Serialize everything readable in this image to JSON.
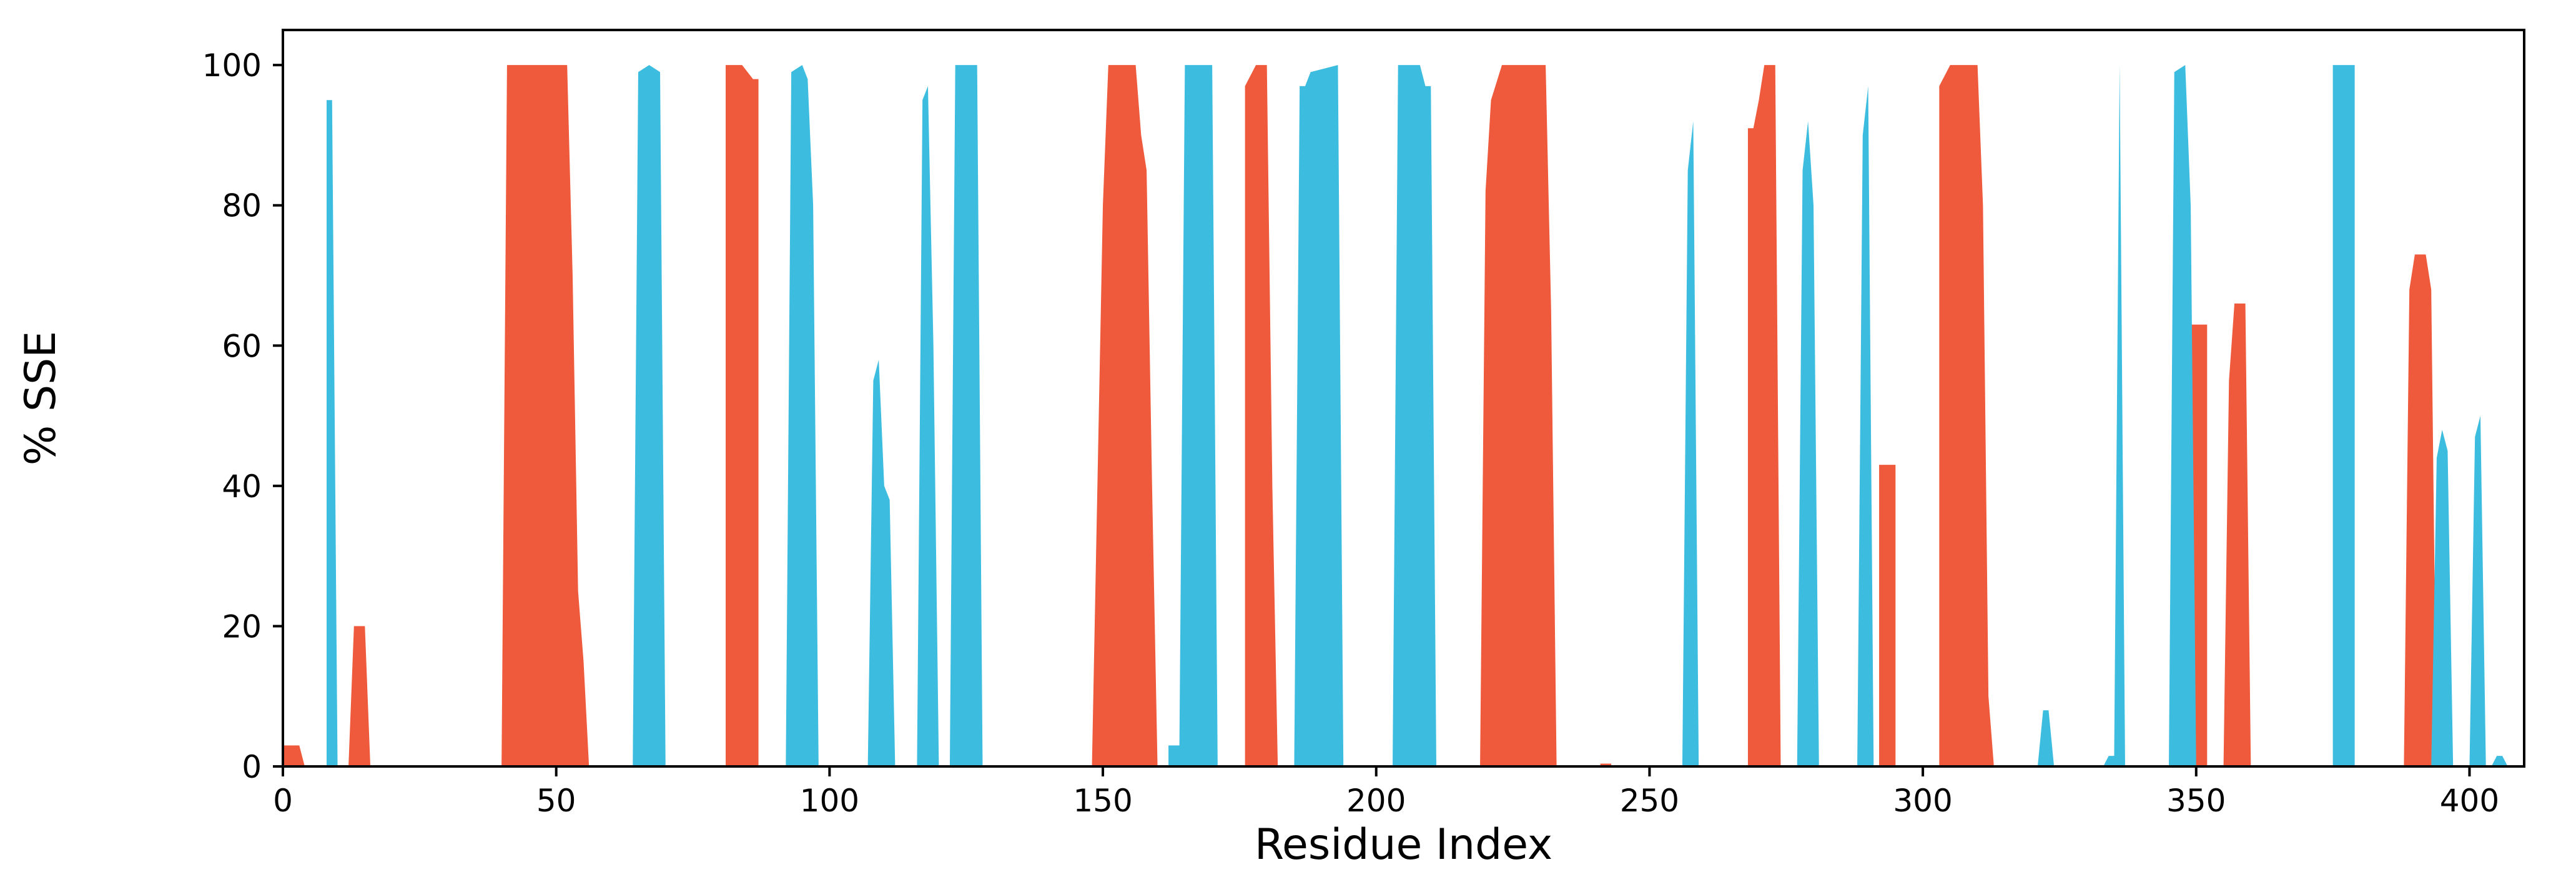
{
  "chart_data": {
    "type": "area",
    "title": "",
    "xlabel": "Residue Index",
    "ylabel": "% SSE",
    "xlim": [
      0,
      410
    ],
    "ylim": [
      0,
      105
    ],
    "xticks": [
      0,
      50,
      100,
      150,
      200,
      250,
      300,
      350,
      400
    ],
    "yticks": [
      0,
      20,
      40,
      60,
      80,
      100
    ],
    "grid": false,
    "legend": "none",
    "colors": {
      "helix": "#f05a3c",
      "strand": "#3cbde0"
    },
    "series": [
      {
        "color": "#f05a3c",
        "points": [
          [
            0,
            0
          ],
          [
            0,
            3
          ],
          [
            3,
            3
          ],
          [
            4,
            0
          ],
          [
            12,
            0
          ],
          [
            13,
            20
          ],
          [
            15,
            20
          ],
          [
            16,
            0
          ],
          [
            40,
            0
          ],
          [
            41,
            100
          ],
          [
            52,
            100
          ],
          [
            53,
            70
          ],
          [
            54,
            25
          ],
          [
            55,
            15
          ],
          [
            56,
            0
          ],
          [
            81,
            0
          ],
          [
            81,
            100
          ],
          [
            84,
            100
          ],
          [
            86,
            98
          ],
          [
            87,
            98
          ],
          [
            87,
            0
          ],
          [
            148,
            0
          ],
          [
            150,
            80
          ],
          [
            151,
            100
          ],
          [
            156,
            100
          ],
          [
            157,
            90
          ],
          [
            158,
            85
          ],
          [
            159,
            40
          ],
          [
            160,
            0
          ],
          [
            176,
            0
          ],
          [
            176,
            97
          ],
          [
            178,
            100
          ],
          [
            180,
            100
          ],
          [
            181,
            40
          ],
          [
            182,
            0
          ],
          [
            219,
            0
          ],
          [
            220,
            82
          ],
          [
            221,
            95
          ],
          [
            223,
            100
          ],
          [
            231,
            100
          ],
          [
            232,
            65
          ],
          [
            233,
            0
          ],
          [
            241,
            0
          ],
          [
            241,
            0.4
          ],
          [
            243,
            0.4
          ],
          [
            243,
            0
          ],
          [
            268,
            0
          ],
          [
            268,
            91
          ],
          [
            269,
            91
          ],
          [
            270,
            95
          ],
          [
            271,
            100
          ],
          [
            273,
            100
          ],
          [
            274,
            0
          ],
          [
            292,
            0
          ],
          [
            292,
            43
          ],
          [
            295,
            43
          ],
          [
            295,
            0
          ],
          [
            303,
            0
          ],
          [
            303,
            97
          ],
          [
            305,
            100
          ],
          [
            310,
            100
          ],
          [
            311,
            80
          ],
          [
            312,
            10
          ],
          [
            313,
            0
          ],
          [
            349,
            0
          ],
          [
            349,
            63
          ],
          [
            352,
            63
          ],
          [
            352,
            0
          ],
          [
            355,
            0
          ],
          [
            356,
            55
          ],
          [
            357,
            66
          ],
          [
            359,
            66
          ],
          [
            360,
            0
          ],
          [
            388,
            0
          ],
          [
            389,
            68
          ],
          [
            390,
            73
          ],
          [
            392,
            73
          ],
          [
            393,
            68
          ],
          [
            394,
            0
          ]
        ]
      },
      {
        "color": "#3cbde0",
        "points": [
          [
            8,
            0
          ],
          [
            8,
            95
          ],
          [
            9,
            95
          ],
          [
            10,
            0
          ],
          [
            64,
            0
          ],
          [
            65,
            99
          ],
          [
            67,
            100
          ],
          [
            69,
            99
          ],
          [
            70,
            0
          ],
          [
            92,
            0
          ],
          [
            93,
            99
          ],
          [
            95,
            100
          ],
          [
            96,
            98
          ],
          [
            97,
            80
          ],
          [
            98,
            0
          ],
          [
            107,
            0
          ],
          [
            108,
            55
          ],
          [
            109,
            58
          ],
          [
            110,
            40
          ],
          [
            111,
            38
          ],
          [
            112,
            0
          ],
          [
            116,
            0
          ],
          [
            117,
            95
          ],
          [
            118,
            97
          ],
          [
            119,
            60
          ],
          [
            120,
            0
          ],
          [
            122,
            0
          ],
          [
            123,
            100
          ],
          [
            125,
            100
          ],
          [
            127,
            100
          ],
          [
            128,
            0
          ],
          [
            162,
            0
          ],
          [
            162,
            3
          ],
          [
            164,
            3
          ],
          [
            165,
            100
          ],
          [
            170,
            100
          ],
          [
            171,
            0
          ],
          [
            185,
            0
          ],
          [
            186,
            97
          ],
          [
            187,
            97
          ],
          [
            188,
            99
          ],
          [
            193,
            100
          ],
          [
            194,
            0
          ],
          [
            203,
            0
          ],
          [
            204,
            100
          ],
          [
            208,
            100
          ],
          [
            209,
            97
          ],
          [
            210,
            97
          ],
          [
            211,
            0
          ],
          [
            256,
            0
          ],
          [
            257,
            85
          ],
          [
            258,
            92
          ],
          [
            259,
            0
          ],
          [
            277,
            0
          ],
          [
            278,
            85
          ],
          [
            279,
            92
          ],
          [
            280,
            80
          ],
          [
            281,
            0
          ],
          [
            288,
            0
          ],
          [
            289,
            90
          ],
          [
            290,
            97
          ],
          [
            291,
            0
          ],
          [
            321,
            0
          ],
          [
            322,
            8
          ],
          [
            323,
            8
          ],
          [
            324,
            0
          ],
          [
            333,
            0
          ],
          [
            334,
            1.5
          ],
          [
            335,
            1.5
          ],
          [
            336,
            100
          ],
          [
            337,
            0
          ],
          [
            345,
            0
          ],
          [
            346,
            99
          ],
          [
            348,
            100
          ],
          [
            349,
            80
          ],
          [
            350,
            0
          ],
          [
            375,
            0
          ],
          [
            375,
            100
          ],
          [
            377,
            100
          ],
          [
            379,
            100
          ],
          [
            379,
            0
          ],
          [
            393,
            0
          ],
          [
            394,
            44
          ],
          [
            395,
            48
          ],
          [
            396,
            45
          ],
          [
            397,
            0
          ],
          [
            400,
            0
          ],
          [
            401,
            47
          ],
          [
            402,
            50
          ],
          [
            403,
            0
          ],
          [
            404,
            0
          ],
          [
            405,
            1.5
          ],
          [
            406,
            1.5
          ],
          [
            407,
            0
          ]
        ]
      }
    ]
  }
}
